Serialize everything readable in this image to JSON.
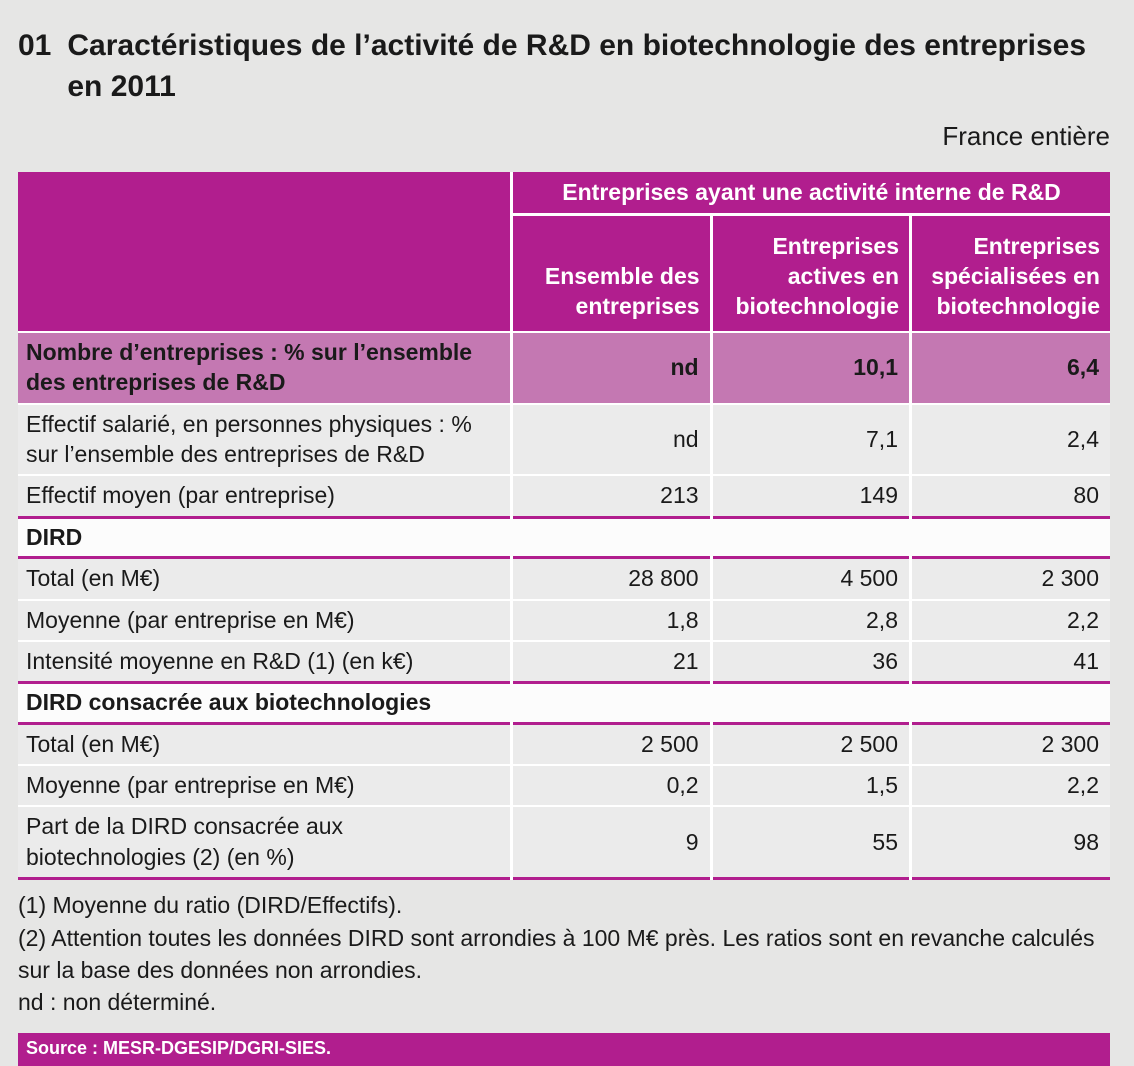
{
  "page": {
    "figure_number": "01",
    "title": "Caractéristiques de l’activité de R&D en biotechnologie des entreprises en 2011",
    "region_label": "France entière"
  },
  "table": {
    "header_span": "Entreprises ayant une activité interne de R&D",
    "columns": [
      "Ensemble des entreprises",
      "Entreprises actives en biotechnologie",
      "Entreprises spécialisées en biotechnologie"
    ],
    "rows": [
      {
        "type": "highlight",
        "label": "Nombre d’entreprises : % sur l’ensemble des entreprises de R&D",
        "values": [
          "nd",
          "10,1",
          "6,4"
        ]
      },
      {
        "type": "tall",
        "label": "Effectif salarié, en personnes physiques : % sur l’ensemble des entreprises de R&D",
        "values": [
          "nd",
          "7,1",
          "2,4"
        ]
      },
      {
        "type": "data",
        "label": "Effectif moyen (par entreprise)",
        "values": [
          "213",
          "149",
          "80"
        ]
      },
      {
        "type": "section",
        "label": "DIRD"
      },
      {
        "type": "data",
        "label": "Total (en M€)",
        "values": [
          "28 800",
          "4 500",
          "2 300"
        ]
      },
      {
        "type": "data",
        "label": "Moyenne (par entreprise en M€)",
        "values": [
          "1,8",
          "2,8",
          "2,2"
        ]
      },
      {
        "type": "data",
        "label": "Intensité moyenne en R&D (1) (en k€)",
        "values": [
          "21",
          "36",
          "41"
        ]
      },
      {
        "type": "section",
        "label": "DIRD consacrée aux biotechnologies"
      },
      {
        "type": "data",
        "label": "Total (en M€)",
        "values": [
          "2 500",
          "2 500",
          "2 300"
        ]
      },
      {
        "type": "data",
        "label": "Moyenne (par entreprise en M€)",
        "values": [
          "0,2",
          "1,5",
          "2,2"
        ]
      },
      {
        "type": "tall",
        "label": "Part de la DIRD consacrée aux biotechnologies (2) (en %)",
        "values": [
          "9",
          "55",
          "98"
        ]
      }
    ],
    "footnotes": [
      "(1) Moyenne du ratio (DIRD/Effectifs).",
      "(2) Attention toutes les données DIRD sont arrondies à 100 M€ près. Les ratios sont en revanche calculés sur la base des données non arrondies.",
      "nd : non déterminé."
    ],
    "source": "Source : MESR-DGESIP/DGRI-SIES."
  },
  "colors": {
    "magenta": "#b11e8e",
    "light_magenta": "#c478b2",
    "row_bg": "#ebebeb",
    "page_bg": "#e6e6e5",
    "section_bg": "#fcfcfc"
  }
}
